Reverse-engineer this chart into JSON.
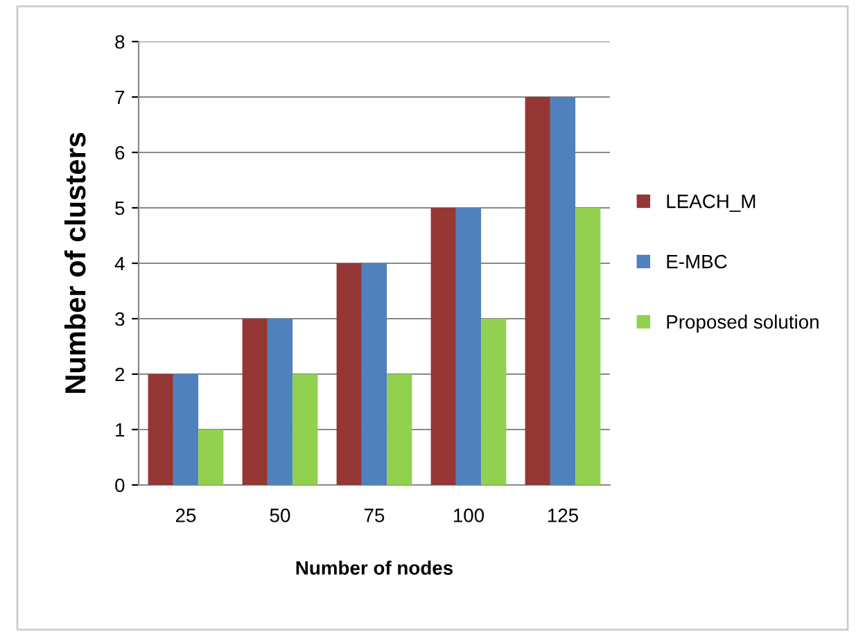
{
  "chart_data": {
    "type": "bar",
    "xlabel": "Number of nodes",
    "ylabel": "Number of clusters",
    "categories": [
      "25",
      "50",
      "75",
      "100",
      "125"
    ],
    "series": [
      {
        "name": "LEACH_M",
        "color": "#953735",
        "values": [
          2,
          3,
          4,
          5,
          7
        ]
      },
      {
        "name": "E-MBC",
        "color": "#4f81bd",
        "values": [
          2,
          3,
          4,
          5,
          7
        ]
      },
      {
        "name": "Proposed solution",
        "color": "#92d050",
        "values": [
          1,
          2,
          2,
          3,
          5
        ]
      }
    ],
    "ylim": [
      0,
      8
    ],
    "yticks": [
      0,
      1,
      2,
      3,
      4,
      5,
      6,
      7,
      8
    ],
    "grid": "y",
    "legend": "right"
  }
}
